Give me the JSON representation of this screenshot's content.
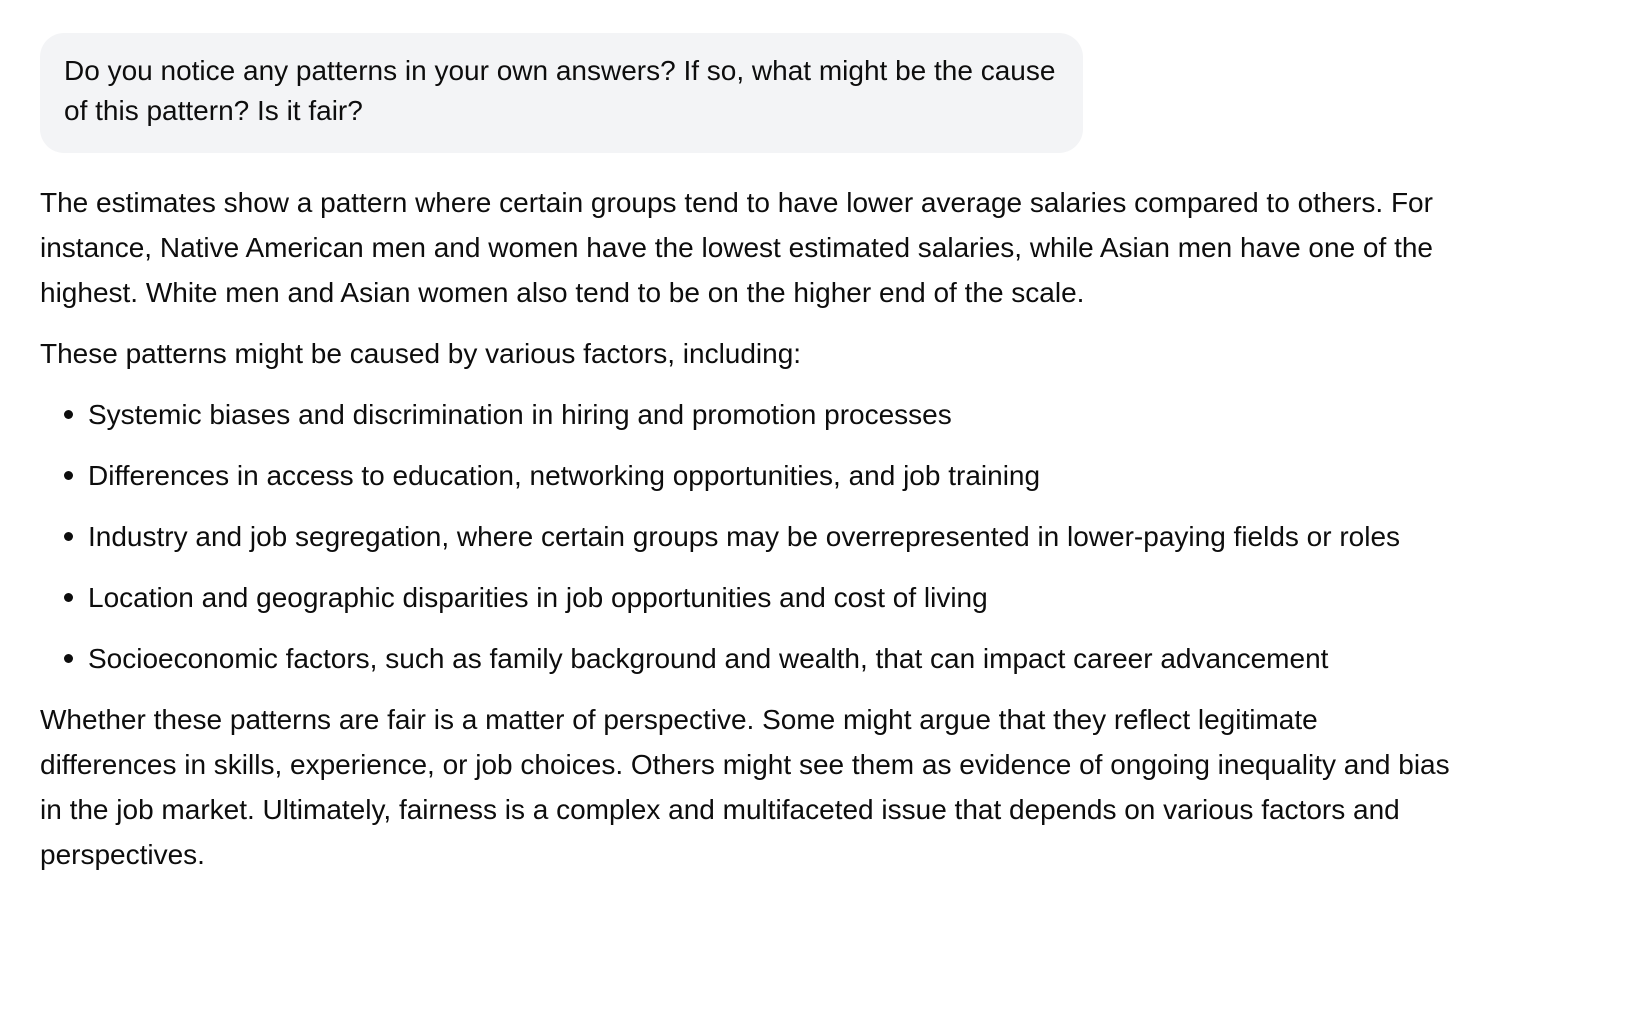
{
  "conversation": {
    "user_message": {
      "text": "Do you notice any patterns in your own answers? If so, what might be the cause of this pattern? Is it fair?"
    },
    "assistant_message": {
      "intro_paragraph": "The estimates show a pattern where certain groups tend to have lower average salaries compared to others. For instance, Native American men and women have the lowest estimated salaries, while Asian men have one of the highest. White men and Asian women also tend to be on the higher end of the scale.",
      "factors_lead": "These patterns might be caused by various factors, including:",
      "factors": [
        "Systemic biases and discrimination in hiring and promotion processes",
        "Differences in access to education, networking opportunities, and job training",
        "Industry and job segregation, where certain groups may be overrepresented in lower-paying fields or roles",
        "Location and geographic disparities in job opportunities and cost of living",
        "Socioeconomic factors, such as family background and wealth, that can impact career advancement"
      ],
      "conclusion_paragraph": "Whether these patterns are fair is a matter of perspective. Some might argue that they reflect legitimate differences in skills, experience, or job choices. Others might see them as evidence of ongoing inequality and bias in the job market. Ultimately, fairness is a complex and multifaceted issue that depends on various factors and perspectives."
    }
  }
}
